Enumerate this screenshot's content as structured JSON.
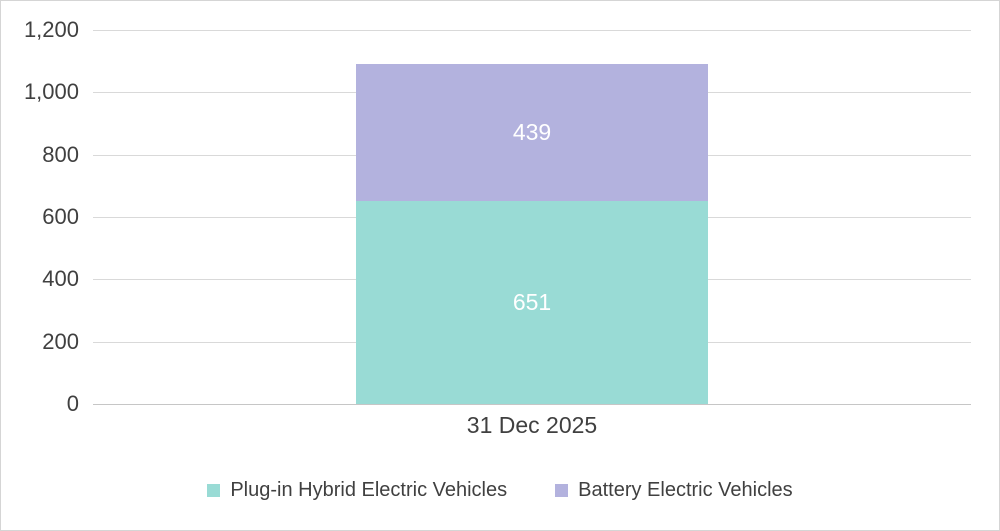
{
  "chart_data": {
    "type": "bar",
    "stacked": true,
    "title": "",
    "categories": [
      "31 Dec 2025"
    ],
    "series": [
      {
        "name": "Plug-in Hybrid Electric Vehicles",
        "values": [
          651
        ],
        "color": "#99dbd5"
      },
      {
        "name": "Battery Electric Vehicles",
        "values": [
          439
        ],
        "color": "#b3b2de"
      }
    ],
    "ylim": [
      0,
      1200
    ],
    "yticks": {
      "values": [
        0,
        200,
        400,
        600,
        800,
        1000,
        1200
      ],
      "labels": [
        "0",
        "200",
        "400",
        "600",
        "800",
        "1,000",
        "1,200"
      ]
    },
    "grid": true,
    "data_labels": true,
    "legend_position": "bottom"
  },
  "colors": {
    "gridline": "#d9d9d9",
    "axis_line": "#c6c6c6",
    "axis_text": "#404040",
    "data_label_text": "#ffffff",
    "background": "#ffffff",
    "frame_border": "#d5d5d5"
  }
}
